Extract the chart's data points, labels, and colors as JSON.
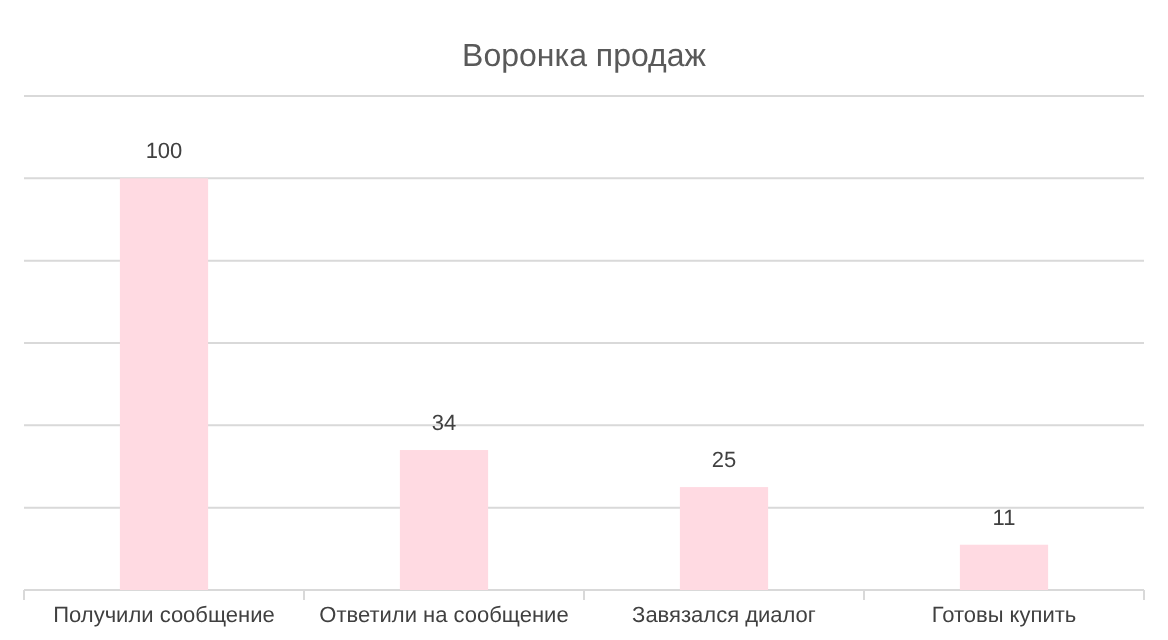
{
  "chart_data": {
    "type": "bar",
    "title": "Воронка продаж",
    "categories": [
      "Получили сообщение",
      "Ответили на сообщение",
      "Завязался диалог",
      "Готовы купить"
    ],
    "values": [
      100,
      34,
      25,
      11
    ],
    "color": "#ffdae2",
    "ylim": [
      0,
      120
    ],
    "yticks": [
      {
        "value": 0,
        "label": null
      },
      {
        "value": 20,
        "label": null
      },
      {
        "value": 40,
        "label": null
      },
      {
        "value": 60,
        "label": null
      },
      {
        "value": 80,
        "label": null
      },
      {
        "value": 100,
        "label": null
      },
      {
        "value": 120,
        "label": null
      }
    ],
    "grid": "y",
    "tick_labels": "x",
    "data_labels": true
  }
}
